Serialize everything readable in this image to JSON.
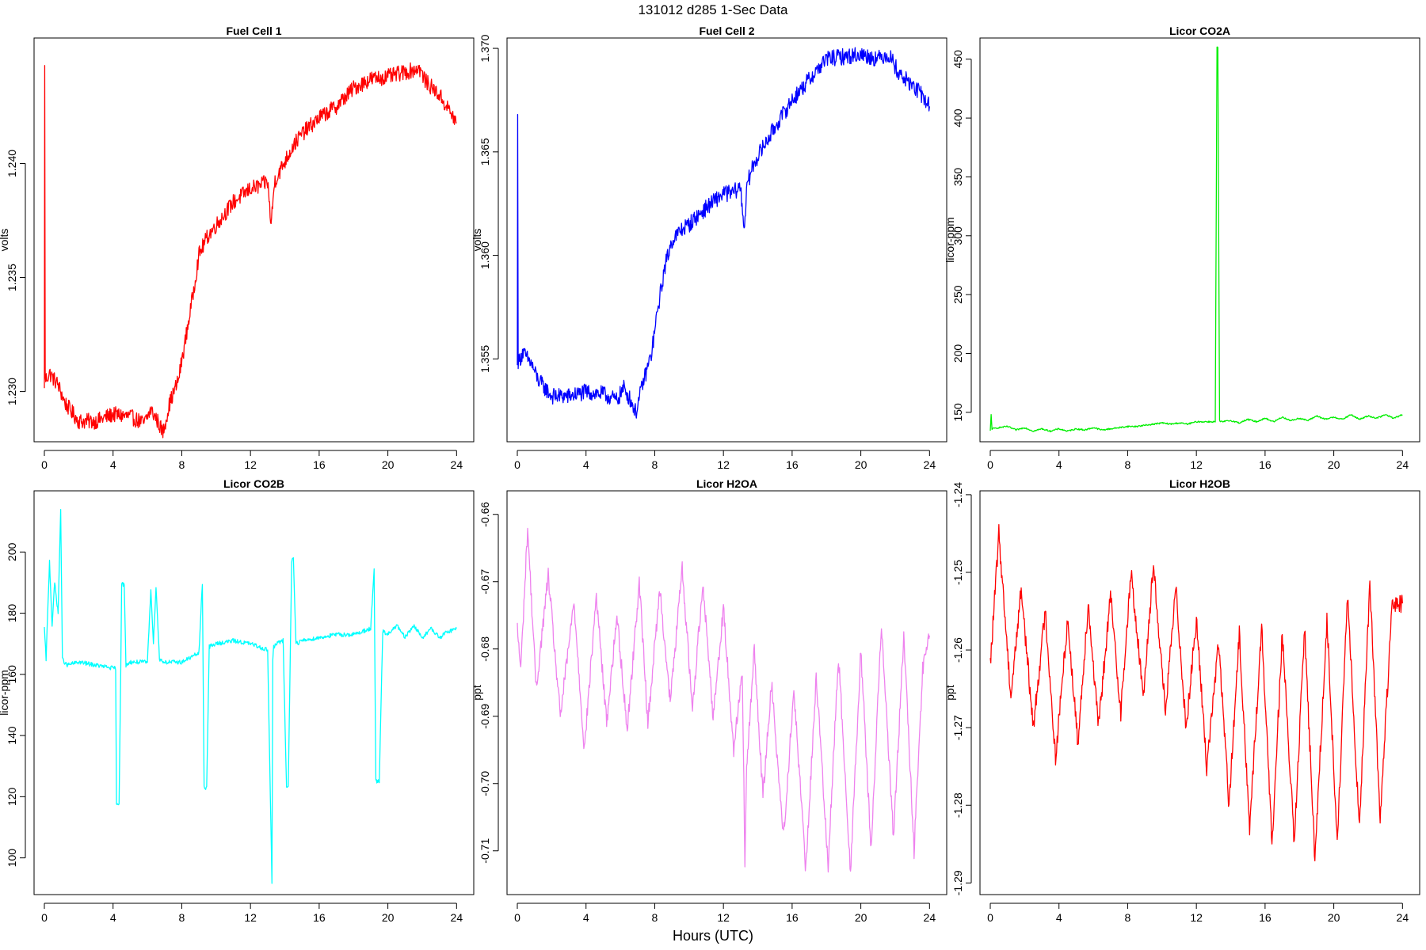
{
  "title": "131012   d285   1-Sec Data",
  "xlabel": "Hours (UTC)",
  "chart_data": [
    {
      "type": "line",
      "title": "Fuel Cell 1",
      "ylabel": "volts",
      "color": "#ff0000",
      "xlim": [
        -0.6,
        25.0
      ],
      "ylim": [
        1.2278,
        1.2455
      ],
      "xticks": [
        0,
        4,
        8,
        12,
        16,
        20,
        24
      ],
      "yticks": [
        1.23,
        1.235,
        1.24
      ],
      "ytick_labels": [
        "1.230",
        "1.235",
        "1.240"
      ],
      "noise": 0.00035,
      "series": [
        {
          "x": [
            0,
            0.02,
            0.05,
            0.3,
            0.8,
            1.2,
            2,
            3,
            4,
            5,
            5.8,
            6.2,
            6.6,
            6.9,
            7.3,
            7.8,
            8.2,
            8.6,
            9,
            9.5,
            10,
            11,
            12,
            12.5,
            13,
            13.2,
            13.4,
            13.8,
            14.5,
            15,
            16,
            17,
            18,
            19,
            20,
            21,
            21.5,
            21.8,
            22.2,
            23,
            23.5,
            24
          ],
          "y": [
            1.23,
            1.2445,
            1.2305,
            1.2308,
            1.2303,
            1.2295,
            1.2287,
            1.2287,
            1.229,
            1.2289,
            1.2286,
            1.2292,
            1.2287,
            1.2282,
            1.2295,
            1.2305,
            1.2322,
            1.234,
            1.236,
            1.2368,
            1.2373,
            1.2383,
            1.2389,
            1.239,
            1.2392,
            1.2373,
            1.2392,
            1.2398,
            1.2408,
            1.2413,
            1.242,
            1.2425,
            1.2433,
            1.2437,
            1.2438,
            1.244,
            1.2441,
            1.2442,
            1.2436,
            1.243,
            1.2424,
            1.2418
          ]
        }
      ]
    },
    {
      "type": "line",
      "title": "Fuel Cell 2",
      "ylabel": "volts",
      "color": "#0000ff",
      "xlim": [
        -0.6,
        25.0
      ],
      "ylim": [
        1.351,
        1.3705
      ],
      "xticks": [
        0,
        4,
        8,
        12,
        16,
        20,
        24
      ],
      "yticks": [
        1.355,
        1.36,
        1.365,
        1.37
      ],
      "ytick_labels": [
        "1.355",
        "1.360",
        "1.365",
        "1.370"
      ],
      "noise": 0.0004,
      "series": [
        {
          "x": [
            0,
            0.02,
            0.05,
            0.3,
            0.8,
            1.2,
            2,
            3,
            4,
            5,
            5.8,
            6.2,
            6.6,
            6.9,
            7.3,
            7.8,
            8.2,
            8.6,
            9,
            9.5,
            10,
            11,
            12,
            12.5,
            13,
            13.2,
            13.4,
            13.8,
            14.5,
            15,
            16,
            17,
            18,
            19,
            20,
            21,
            21.5,
            21.8,
            22.2,
            23,
            23.5,
            24
          ],
          "y": [
            1.3545,
            1.3672,
            1.3548,
            1.3553,
            1.3548,
            1.354,
            1.3532,
            1.3532,
            1.3534,
            1.3533,
            1.353,
            1.3536,
            1.353,
            1.3524,
            1.3538,
            1.3552,
            1.3575,
            1.3595,
            1.3607,
            1.3612,
            1.3615,
            1.3623,
            1.363,
            1.363,
            1.3633,
            1.3613,
            1.3635,
            1.3645,
            1.3655,
            1.3662,
            1.3675,
            1.3685,
            1.3695,
            1.3696,
            1.3697,
            1.3695,
            1.3697,
            1.3695,
            1.3688,
            1.3682,
            1.3678,
            1.3672
          ]
        }
      ]
    },
    {
      "type": "line",
      "title": "Licor CO2A",
      "ylabel": "licor-ppm",
      "color": "#00ee00",
      "xlim": [
        -0.6,
        25.0
      ],
      "ylim": [
        125,
        468
      ],
      "xticks": [
        0,
        4,
        8,
        12,
        16,
        20,
        24
      ],
      "yticks": [
        150,
        200,
        250,
        300,
        350,
        400,
        450
      ],
      "ytick_labels": [
        "150",
        "200",
        "250",
        "300",
        "350",
        "400",
        "450"
      ],
      "noise": 0.6,
      "series": [
        {
          "x": [
            0,
            0.05,
            0.1,
            0.5,
            1,
            1.5,
            2,
            2.5,
            3,
            3.5,
            4,
            4.5,
            5,
            5.5,
            6,
            6.5,
            7,
            7.5,
            8,
            8.5,
            9,
            9.5,
            10,
            10.5,
            11,
            11.5,
            12,
            12.5,
            13.1,
            13.2,
            13.25,
            13.35,
            13.4,
            13.5,
            14,
            14.5,
            15,
            15.5,
            16,
            16.5,
            17,
            17.5,
            18,
            18.5,
            19,
            19.5,
            20,
            20.5,
            21,
            21.5,
            22,
            22.5,
            23,
            23.5,
            24
          ],
          "y": [
            134,
            148,
            136,
            137,
            138,
            135,
            137,
            134,
            136,
            134,
            136,
            134,
            136,
            135,
            137,
            135,
            136,
            137,
            138,
            138,
            139,
            140,
            141,
            140,
            141,
            140,
            142,
            142,
            142,
            460,
            460,
            143,
            142,
            142,
            143,
            141,
            144,
            142,
            145,
            142,
            146,
            143,
            145,
            143,
            147,
            144,
            146,
            144,
            148,
            144,
            147,
            145,
            148,
            145,
            148
          ]
        }
      ]
    },
    {
      "type": "line",
      "title": "Licor CO2B",
      "ylabel": "licor-ppm",
      "color": "#00ffff",
      "xlim": [
        -0.6,
        25.0
      ],
      "ylim": [
        88,
        220
      ],
      "xticks": [
        0,
        4,
        8,
        12,
        16,
        20,
        24
      ],
      "yticks": [
        100,
        120,
        140,
        160,
        180,
        200
      ],
      "ytick_labels": [
        "100",
        "120",
        "140",
        "160",
        "180",
        "200"
      ],
      "noise": 0.7,
      "series": [
        {
          "x": [
            0,
            0.1,
            0.3,
            0.45,
            0.6,
            0.8,
            0.95,
            1.05,
            1.3,
            2,
            3,
            4,
            4.15,
            4.2,
            4.35,
            4.45,
            4.5,
            4.65,
            4.75,
            5,
            6,
            6.2,
            6.35,
            6.5,
            6.7,
            7,
            8,
            9,
            9.2,
            9.3,
            9.45,
            9.6,
            10,
            11,
            12,
            13,
            13.25,
            13.3,
            13.35,
            13.5,
            13.9,
            14.1,
            14.2,
            14.4,
            14.5,
            14.65,
            15,
            16,
            17,
            18,
            19,
            19.2,
            19.3,
            19.5,
            19.7,
            20,
            20.5,
            21,
            21.5,
            22,
            22.5,
            23,
            23.5,
            24
          ],
          "y": [
            175,
            165,
            197,
            176,
            190,
            180,
            214,
            165,
            163,
            164,
            163,
            162,
            162,
            117,
            118,
            163,
            190,
            189,
            163,
            164,
            164,
            188,
            170,
            189,
            165,
            164,
            164,
            167,
            190,
            123,
            123,
            169,
            170,
            171,
            170,
            168,
            92,
            165,
            169,
            170,
            171,
            123,
            123,
            197,
            198,
            170,
            171,
            172,
            173,
            173,
            175,
            194,
            125,
            125,
            174,
            173,
            176,
            172,
            176,
            172,
            175,
            172,
            174,
            175
          ]
        }
      ]
    },
    {
      "type": "line",
      "title": "Licor H2OA",
      "ylabel": "ppt",
      "color": "#ee82ee",
      "xlim": [
        -0.6,
        25.0
      ],
      "ylim": [
        -0.7165,
        -0.6565
      ],
      "xticks": [
        0,
        4,
        8,
        12,
        16,
        20,
        24
      ],
      "yticks": [
        -0.71,
        -0.7,
        -0.69,
        -0.68,
        -0.67,
        -0.66
      ],
      "ytick_labels": [
        "-0.71",
        "-0.70",
        "-0.69",
        "-0.68",
        "-0.67",
        "-0.66"
      ],
      "noise": 0.0012,
      "series": [
        {
          "x": [
            0,
            0.2,
            0.6,
            1.1,
            1.8,
            2.5,
            3.3,
            3.9,
            4.6,
            5.2,
            5.8,
            6.4,
            7.1,
            7.6,
            8.3,
            8.9,
            9.6,
            10.2,
            10.8,
            11.4,
            12,
            12.6,
            13.1,
            13.25,
            13.35,
            13.8,
            14.3,
            14.8,
            15.5,
            16.1,
            16.8,
            17.4,
            18.1,
            18.7,
            19.4,
            20,
            20.6,
            21.2,
            21.9,
            22.5,
            23.1,
            23.6,
            24
          ],
          "y": [
            -0.677,
            -0.683,
            -0.662,
            -0.686,
            -0.669,
            -0.69,
            -0.673,
            -0.695,
            -0.672,
            -0.691,
            -0.675,
            -0.692,
            -0.67,
            -0.691,
            -0.671,
            -0.688,
            -0.668,
            -0.689,
            -0.67,
            -0.69,
            -0.674,
            -0.695,
            -0.683,
            -0.712,
            -0.698,
            -0.68,
            -0.702,
            -0.685,
            -0.708,
            -0.686,
            -0.713,
            -0.684,
            -0.712,
            -0.681,
            -0.713,
            -0.68,
            -0.71,
            -0.676,
            -0.708,
            -0.678,
            -0.71,
            -0.683,
            -0.678
          ]
        }
      ]
    },
    {
      "type": "line",
      "title": "Licor H2OB",
      "ylabel": "ppt",
      "color": "#ff0000",
      "xlim": [
        -0.6,
        25.0
      ],
      "ylim": [
        -1.2915,
        -1.2395
      ],
      "xticks": [
        0,
        4,
        8,
        12,
        16,
        20,
        24
      ],
      "yticks": [
        -1.29,
        -1.28,
        -1.27,
        -1.26,
        -1.25,
        -1.24
      ],
      "ytick_labels": [
        "-1.29",
        "-1.28",
        "-1.27",
        "-1.26",
        "-1.25",
        "-1.24"
      ],
      "noise": 0.0012,
      "series": [
        {
          "x": [
            0,
            0.5,
            1.2,
            1.8,
            2.5,
            3.2,
            3.8,
            4.5,
            5.1,
            5.7,
            6.3,
            7,
            7.6,
            8.2,
            8.9,
            9.5,
            10.2,
            10.8,
            11.4,
            12,
            12.6,
            13.3,
            13.9,
            14.5,
            15.1,
            15.8,
            16.4,
            17,
            17.7,
            18.3,
            18.9,
            19.6,
            20.2,
            20.8,
            21.5,
            22.1,
            22.7,
            23.4,
            24
          ],
          "y": [
            -1.262,
            -1.245,
            -1.266,
            -1.252,
            -1.27,
            -1.255,
            -1.274,
            -1.256,
            -1.272,
            -1.254,
            -1.27,
            -1.253,
            -1.268,
            -1.25,
            -1.266,
            -1.249,
            -1.268,
            -1.252,
            -1.27,
            -1.256,
            -1.275,
            -1.259,
            -1.28,
            -1.258,
            -1.283,
            -1.257,
            -1.285,
            -1.258,
            -1.285,
            -1.257,
            -1.287,
            -1.256,
            -1.285,
            -1.253,
            -1.283,
            -1.251,
            -1.282,
            -1.254,
            -1.254
          ]
        }
      ]
    }
  ]
}
